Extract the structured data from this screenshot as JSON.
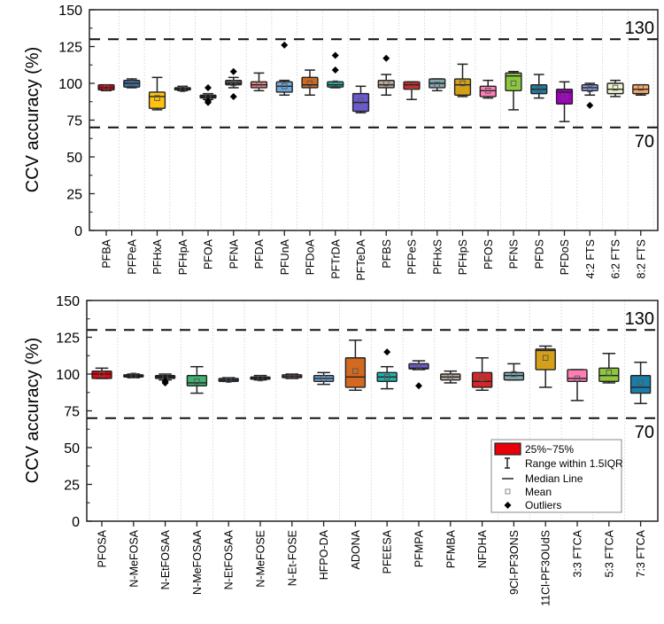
{
  "chart_data": [
    {
      "type": "box",
      "panel": "top",
      "title": "",
      "xlabel": "",
      "ylabel": "CCV accuracy (%)",
      "ylim": [
        0,
        150
      ],
      "yticks": [
        0,
        25,
        50,
        75,
        100,
        125,
        150
      ],
      "reference_lines": [
        {
          "value": 130,
          "label": "130",
          "style": "dashed"
        },
        {
          "value": 70,
          "label": "70",
          "style": "dashed"
        }
      ],
      "grid": "vertical dotted",
      "categories": [
        "PFBA",
        "PFPeA",
        "PFHxA",
        "PFHpA",
        "PFOA",
        "PFNA",
        "PFDA",
        "PFUnA",
        "PFDoA",
        "PFTrDA",
        "PFTeDA",
        "PFBS",
        "PFPeS",
        "PFHxS",
        "PFHpS",
        "PFOS",
        "PFNS",
        "PFDS",
        "PFDoS",
        "4:2 FTS",
        "6:2 FTS",
        "8:2 FTS"
      ],
      "boxes": [
        {
          "name": "PFBA",
          "color": "#e8000b",
          "whisker_low": 95,
          "q1": 95.5,
          "median": 97,
          "q3": 99,
          "whisker_high": 99,
          "mean": 97,
          "outliers": []
        },
        {
          "name": "PFPeA",
          "color": "#3b75af",
          "whisker_low": 97,
          "q1": 97.5,
          "median": 100,
          "q3": 102,
          "whisker_high": 103,
          "mean": 100,
          "outliers": []
        },
        {
          "name": "PFHxA",
          "color": "#ffc20e",
          "whisker_low": 82,
          "q1": 83,
          "median": 91,
          "q3": 94,
          "whisker_high": 104,
          "mean": 90,
          "outliers": []
        },
        {
          "name": "PFHpA",
          "color": "#1a1a1a",
          "whisker_low": 95,
          "q1": 95.5,
          "median": 96,
          "q3": 97,
          "whisker_high": 98,
          "mean": 96,
          "outliers": []
        },
        {
          "name": "PFOA",
          "color": "#1a1a1a",
          "whisker_low": 89,
          "q1": 90,
          "median": 91,
          "q3": 92,
          "whisker_high": 93,
          "mean": 91,
          "outliers": [
            97,
            88,
            87
          ]
        },
        {
          "name": "PFNA",
          "color": "#5a5a5a",
          "whisker_low": 97,
          "q1": 99,
          "median": 100,
          "q3": 102,
          "whisker_high": 104,
          "mean": 100,
          "outliers": [
            108,
            91
          ]
        },
        {
          "name": "PFDA",
          "color": "#f08080",
          "whisker_low": 95,
          "q1": 97,
          "median": 99,
          "q3": 101,
          "whisker_high": 107,
          "mean": 99,
          "outliers": []
        },
        {
          "name": "PFUnA",
          "color": "#6fa8dc",
          "whisker_low": 92,
          "q1": 94,
          "median": 98,
          "q3": 101,
          "whisker_high": 102,
          "mean": 98,
          "outliers": [
            126
          ]
        },
        {
          "name": "PFDoA",
          "color": "#d2691e",
          "whisker_low": 92,
          "q1": 97,
          "median": 99,
          "q3": 104,
          "whisker_high": 109,
          "mean": 100,
          "outliers": []
        },
        {
          "name": "PFTrDA",
          "color": "#20b2aa",
          "whisker_low": 97,
          "q1": 97.5,
          "median": 99,
          "q3": 101,
          "whisker_high": 101,
          "mean": 100,
          "outliers": [
            119,
            109
          ]
        },
        {
          "name": "PFTeDA",
          "color": "#6a5acd",
          "whisker_low": 80,
          "q1": 81,
          "median": 87,
          "q3": 93,
          "whisker_high": 98,
          "mean": 88,
          "outliers": []
        },
        {
          "name": "PFBS",
          "color": "#b5a89a",
          "whisker_low": 92,
          "q1": 97,
          "median": 99,
          "q3": 102,
          "whisker_high": 106,
          "mean": 100,
          "outliers": [
            117
          ]
        },
        {
          "name": "PFPeS",
          "color": "#d62728",
          "whisker_low": 89,
          "q1": 96,
          "median": 99,
          "q3": 101,
          "whisker_high": 101,
          "mean": 98,
          "outliers": []
        },
        {
          "name": "PFHxS",
          "color": "#7fa7b0",
          "whisker_low": 95,
          "q1": 97,
          "median": 100,
          "q3": 103,
          "whisker_high": 103,
          "mean": 99,
          "outliers": []
        },
        {
          "name": "PFHpS",
          "color": "#d4a017",
          "whisker_low": 91,
          "q1": 92,
          "median": 99,
          "q3": 103,
          "whisker_high": 113,
          "mean": 100,
          "outliers": []
        },
        {
          "name": "PFOS",
          "color": "#ff7eb6",
          "whisker_low": 90,
          "q1": 91,
          "median": 95,
          "q3": 98,
          "whisker_high": 102,
          "mean": 95,
          "outliers": []
        },
        {
          "name": "PFNS",
          "color": "#8dc63f",
          "whisker_low": 82,
          "q1": 95,
          "median": 105,
          "q3": 107,
          "whisker_high": 108,
          "mean": 100,
          "outliers": []
        },
        {
          "name": "PFDS",
          "color": "#1a7fa8",
          "whisker_low": 90,
          "q1": 93,
          "median": 96,
          "q3": 99,
          "whisker_high": 106,
          "mean": 96,
          "outliers": []
        },
        {
          "name": "PFDoS",
          "color": "#a100c2",
          "whisker_low": 74,
          "q1": 86,
          "median": 94,
          "q3": 96,
          "whisker_high": 101,
          "mean": 91,
          "outliers": []
        },
        {
          "name": "4:2 FTS",
          "color": "#8fa3f0",
          "whisker_low": 92,
          "q1": 95,
          "median": 97,
          "q3": 99,
          "whisker_high": 100,
          "mean": 96,
          "outliers": [
            85
          ]
        },
        {
          "name": "6:2 FTS",
          "color": "#f0f5d0",
          "whisker_low": 91,
          "q1": 93,
          "median": 96,
          "q3": 100,
          "whisker_high": 102,
          "mean": 97,
          "outliers": []
        },
        {
          "name": "8:2 FTS",
          "color": "#f5a96a",
          "whisker_low": 92,
          "q1": 93,
          "median": 96,
          "q3": 99,
          "whisker_high": 99,
          "mean": 97,
          "outliers": []
        }
      ]
    },
    {
      "type": "box",
      "panel": "bottom",
      "title": "",
      "xlabel": "",
      "ylabel": "CCV accuracy (%)",
      "ylim": [
        0,
        150
      ],
      "yticks": [
        0,
        25,
        50,
        75,
        100,
        125,
        150
      ],
      "reference_lines": [
        {
          "value": 130,
          "label": "130",
          "style": "dashed"
        },
        {
          "value": 70,
          "label": "70",
          "style": "dashed"
        }
      ],
      "grid": "vertical dotted",
      "categories": [
        "PFOSA",
        "N-MeFOSA",
        "N-EtFOSAA",
        "N-MeFOSAA",
        "N-EtFOSAA",
        "N-MeFOSE",
        "N-Et-FOSE",
        "HFPO-DA",
        "ADONA",
        "PFEESA",
        "PFMPA",
        "PFMBA",
        "NFDHA",
        "9Cl-PF3ONS",
        "11Cl-PF3OUdS",
        "3:3 FTCA",
        "5:3 FTCA",
        "7:3 FTCA"
      ],
      "boxes": [
        {
          "name": "PFOSA",
          "color": "#e8000b",
          "whisker_low": 97,
          "q1": 97,
          "median": 100,
          "q3": 102,
          "whisker_high": 104,
          "mean": 100,
          "outliers": []
        },
        {
          "name": "N-MeFOSA",
          "color": "#1a1a1a",
          "whisker_low": 97.5,
          "q1": 98,
          "median": 99,
          "q3": 99.5,
          "whisker_high": 100,
          "mean": 99,
          "outliers": []
        },
        {
          "name": "N-EtFOSAA",
          "color": "#1a1a1a",
          "whisker_low": 96,
          "q1": 97,
          "median": 98,
          "q3": 99,
          "whisker_high": 100,
          "mean": 98,
          "outliers": [
            95,
            94
          ]
        },
        {
          "name": "N-MeFOSAA",
          "color": "#3cb371",
          "whisker_low": 87,
          "q1": 92,
          "median": 94,
          "q3": 99,
          "whisker_high": 105,
          "mean": 95,
          "outliers": []
        },
        {
          "name": "N-EtFOSAA",
          "color": "#3b5b8f",
          "whisker_low": 95,
          "q1": 95,
          "median": 96,
          "q3": 97,
          "whisker_high": 97.5,
          "mean": 96,
          "outliers": []
        },
        {
          "name": "N-MeFOSE",
          "color": "#1a1a1a",
          "whisker_low": 96,
          "q1": 96.5,
          "median": 97,
          "q3": 98,
          "whisker_high": 99,
          "mean": 97,
          "outliers": []
        },
        {
          "name": "N-Et-FOSE",
          "color": "#f08080",
          "whisker_low": 97,
          "q1": 97.5,
          "median": 98.5,
          "q3": 99.5,
          "whisker_high": 100,
          "mean": 98.5,
          "outliers": []
        },
        {
          "name": "HFPO-DA",
          "color": "#6fa8dc",
          "whisker_low": 93,
          "q1": 95,
          "median": 97,
          "q3": 99,
          "whisker_high": 101,
          "mean": 97,
          "outliers": []
        },
        {
          "name": "ADONA",
          "color": "#d2691e",
          "whisker_low": 89,
          "q1": 91,
          "median": 98,
          "q3": 111,
          "whisker_high": 123,
          "mean": 102,
          "outliers": []
        },
        {
          "name": "PFEESA",
          "color": "#20b2aa",
          "whisker_low": 90,
          "q1": 95,
          "median": 98,
          "q3": 101,
          "whisker_high": 105,
          "mean": 98,
          "outliers": [
            115
          ]
        },
        {
          "name": "PFMPA",
          "color": "#6a5acd",
          "whisker_low": 103,
          "q1": 103.5,
          "median": 104,
          "q3": 107,
          "whisker_high": 109,
          "mean": 105,
          "outliers": [
            92
          ]
        },
        {
          "name": "PFMBA",
          "color": "#b5a89a",
          "whisker_low": 94,
          "q1": 96,
          "median": 98,
          "q3": 100,
          "whisker_high": 102,
          "mean": 98,
          "outliers": []
        },
        {
          "name": "NFDHA",
          "color": "#d62728",
          "whisker_low": 89,
          "q1": 91,
          "median": 95,
          "q3": 101,
          "whisker_high": 111,
          "mean": 97,
          "outliers": []
        },
        {
          "name": "9Cl-PF3ONS",
          "color": "#7fa7b0",
          "whisker_low": 96,
          "q1": 96,
          "median": 99,
          "q3": 101,
          "whisker_high": 107,
          "mean": 100,
          "outliers": []
        },
        {
          "name": "11Cl-PF3OUdS",
          "color": "#d4a017",
          "whisker_low": 91,
          "q1": 103,
          "median": 116,
          "q3": 117,
          "whisker_high": 119,
          "mean": 111,
          "outliers": []
        },
        {
          "name": "3:3 FTCA",
          "color": "#ff7eb6",
          "whisker_low": 82,
          "q1": 95,
          "median": 97,
          "q3": 103,
          "whisker_high": 103,
          "mean": 97,
          "outliers": []
        },
        {
          "name": "5:3 FTCA",
          "color": "#8dc63f",
          "whisker_low": 94,
          "q1": 95,
          "median": 99,
          "q3": 104,
          "whisker_high": 114,
          "mean": 101,
          "outliers": []
        },
        {
          "name": "7:3 FTCA",
          "color": "#1a7fa8",
          "whisker_low": 80,
          "q1": 87,
          "median": 91,
          "q3": 99,
          "whisker_high": 108,
          "mean": 94,
          "outliers": []
        }
      ],
      "legend": {
        "placement": "bottom-right",
        "items": [
          {
            "symbol": "box",
            "label": "25%~75%",
            "color": "#e8000b"
          },
          {
            "symbol": "whisker",
            "label": "Range within 1.5IQR"
          },
          {
            "symbol": "line",
            "label": "Median Line"
          },
          {
            "symbol": "square",
            "label": "Mean"
          },
          {
            "symbol": "diamond",
            "label": "Outliers"
          }
        ]
      }
    }
  ]
}
